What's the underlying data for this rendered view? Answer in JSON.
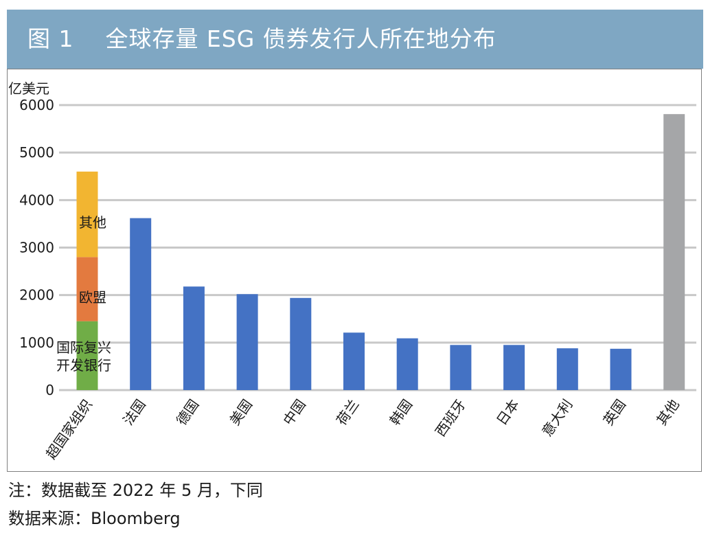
{
  "header": {
    "title": "图 1    全球存量 ESG 债券发行人所在地分布"
  },
  "footnote": "注：数据截至 2022 年 5 月，下同",
  "source": "数据来源：Bloomberg",
  "colors": {
    "bar": "#4472c4",
    "other_bar": "#a5a6a8",
    "seg_dev_bank": "#70ad47",
    "seg_eu": "#e37a3f",
    "seg_other": "#f2b531",
    "grid": "#c8c8c8",
    "header_bg": "#7fa7c3"
  },
  "chart_data": {
    "type": "bar",
    "ylabel": "亿美元",
    "ylim": [
      0,
      6000
    ],
    "yticks": [
      0,
      1000,
      2000,
      3000,
      4000,
      5000,
      6000
    ],
    "grid": true,
    "categories": [
      "超国家组织",
      "法国",
      "德国",
      "美国",
      "中国",
      "荷兰",
      "韩国",
      "西班牙",
      "日本",
      "意大利",
      "英国",
      "其他"
    ],
    "values": [
      4600,
      3620,
      2180,
      2020,
      1940,
      1210,
      1090,
      950,
      950,
      880,
      870,
      5810
    ],
    "stack": {
      "category": "超国家组织",
      "segments": [
        {
          "label": "国际复兴\n开发银行",
          "value": 1450
        },
        {
          "label": "欧盟",
          "value": 1350
        },
        {
          "label": "其他",
          "value": 1800
        }
      ]
    }
  }
}
